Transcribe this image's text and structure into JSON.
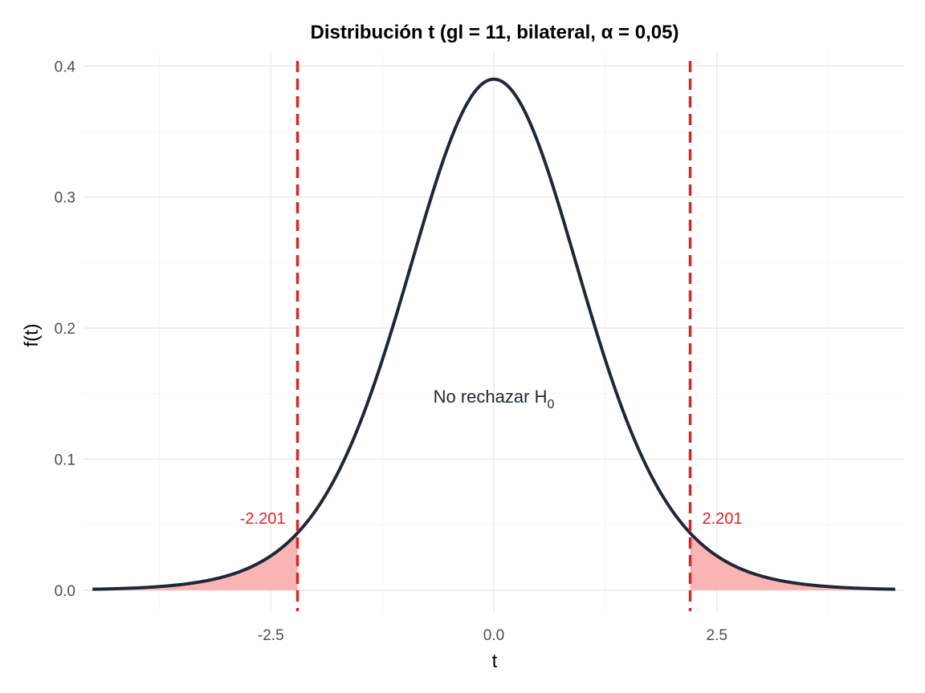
{
  "chart_data": {
    "type": "line",
    "title": "Distribución t (gl = 11, bilateral, α = 0,05)",
    "xlabel": "t",
    "ylabel": "f(t)",
    "df": 11,
    "alpha": 0.05,
    "xlim": [
      -4.6,
      4.6
    ],
    "ylim": [
      -0.016,
      0.41
    ],
    "x_ticks": [
      -2.5,
      0.0,
      2.5
    ],
    "x_tick_labels": [
      "-2.5",
      "0.0",
      "2.5"
    ],
    "y_ticks": [
      0.0,
      0.1,
      0.2,
      0.3,
      0.4
    ],
    "y_tick_labels": [
      "0.0",
      "0.1",
      "0.2",
      "0.3",
      "0.4"
    ],
    "grid": true,
    "density_range": [
      -4.5,
      4.5
    ],
    "critical_values": [
      -2.201,
      2.201
    ],
    "critical_labels": [
      "-2.201",
      "2.201"
    ],
    "annotation": {
      "text": "No rechazar H",
      "subscript": "0",
      "x": 0.0,
      "y": 0.148
    },
    "colors": {
      "curve": "#1e2838",
      "rejection_fill": "#fbb4b4",
      "critical_line": "#d62728",
      "grid_major": "#ebebeb",
      "grid_minor": "#f5f5f5"
    }
  }
}
